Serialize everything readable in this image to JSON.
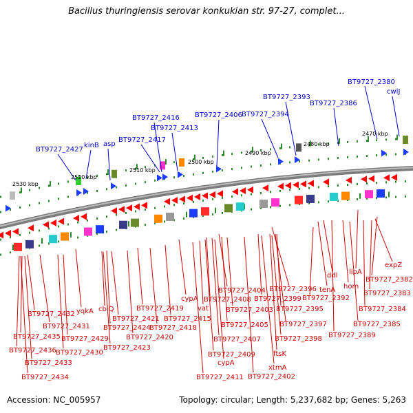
{
  "title": "Bacillus thuringiensis serovar konkukian str. 97-27, complet...",
  "footer": {
    "accession": "Accession: NC_005957",
    "summary": "Topology: circular; Length: 5,237,682 bp; Genes: 5,263"
  },
  "colors": {
    "forward_label": "#0000cc",
    "reverse_label": "#cc0000",
    "forward_feature": "#1b3cff",
    "reverse_feature": "#ff0000",
    "backbone": "#777777",
    "tick": "#2a8a2a"
  },
  "kbp_ticks": [
    "2530 kbp",
    "2520 kbp",
    "2510 kbp",
    "2500 kbp",
    "2490 kbp",
    "2480 kbp",
    "2470 kbp"
  ],
  "forward_labels": [
    "BT9727_2380",
    "cwlJ",
    "BT9727_2393",
    "BT9727_2386",
    "BT9727_2416",
    "BT9727_2406",
    "BT9727_2394",
    "BT9727_2413",
    "BT9727_2417",
    "BT9727_2427",
    "kinB",
    "asp"
  ],
  "reverse_labels": [
    "expZ",
    "lipA",
    "ddl",
    "BT9727_2382",
    "hom",
    "tenA",
    "BT9727_2383",
    "BT9727_2396",
    "cypA",
    "BT9727_2404",
    "vat",
    "BT9727_2392",
    "BT9727_2384",
    "BT9727_2408",
    "BT9727_2399",
    "BT9727_2395",
    "BT9727_2403",
    "cbiQ",
    "BT9727_2419",
    "BT9727_2432",
    "yqkA",
    "BT9727_2421",
    "BT9727_2415",
    "BT9727_2397",
    "BT9727_2385",
    "BT9727_2431",
    "BT9727_2424",
    "BT9727_2418",
    "BT9727_2405",
    "BT9727_2435",
    "BT9727_2429",
    "BT9727_2420",
    "BT9727_2407",
    "BT9727_2398",
    "BT9727_2389",
    "BT9727_2436",
    "BT9727_2430",
    "BT9727_2423",
    "BT9727_2409",
    "ftsK",
    "BT9727_2433",
    "cypA",
    "xtmA",
    "BT9727_2434",
    "BT9727_2411",
    "BT9727_2402"
  ]
}
